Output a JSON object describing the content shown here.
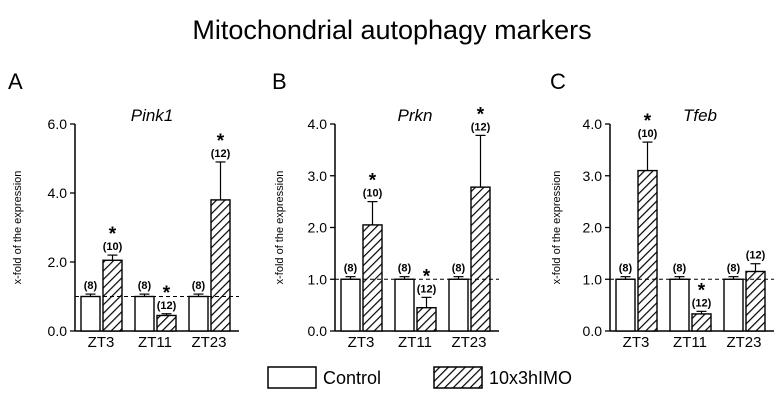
{
  "figure": {
    "title": "Mitochondrial autophagy markers",
    "legend": [
      "Control",
      "10x3hIMO"
    ]
  },
  "colors": {
    "control_fill": "#ffffff",
    "treated_hatch": "#000000",
    "reference_line": "#000000"
  },
  "chart_data": [
    {
      "type": "bar",
      "panel": "A",
      "title": "Pink1",
      "ylabel": "x-fold of the expression",
      "xlabel": "",
      "ylim": [
        0,
        6
      ],
      "yticks": [
        0,
        2,
        4,
        6
      ],
      "ytick_labels": [
        "0.0",
        "2.0",
        "4.0",
        "6.0"
      ],
      "reference_line": 1.0,
      "categories": [
        "ZT3",
        "ZT11",
        "ZT23"
      ],
      "series": [
        {
          "name": "Control",
          "values": [
            1.0,
            1.0,
            1.0
          ],
          "errors": [
            0.07,
            0.07,
            0.07
          ],
          "n": [
            "(8)",
            "(8)",
            "(8)"
          ]
        },
        {
          "name": "10x3hIMO",
          "values": [
            2.05,
            0.45,
            3.8
          ],
          "errors": [
            0.15,
            0.05,
            1.1
          ],
          "n": [
            "(10)",
            "(12)",
            "(12)"
          ],
          "significant": [
            true,
            true,
            true
          ]
        }
      ]
    },
    {
      "type": "bar",
      "panel": "B",
      "title": "Prkn",
      "ylabel": "x-fold of the expression",
      "xlabel": "",
      "ylim": [
        0,
        4
      ],
      "yticks": [
        0,
        1,
        2,
        3,
        4
      ],
      "ytick_labels": [
        "0.0",
        "1.0",
        "2.0",
        "3.0",
        "4.0"
      ],
      "reference_line": 1.0,
      "categories": [
        "ZT3",
        "ZT11",
        "ZT23"
      ],
      "series": [
        {
          "name": "Control",
          "values": [
            1.0,
            1.0,
            1.0
          ],
          "errors": [
            0.05,
            0.05,
            0.05
          ],
          "n": [
            "(8)",
            "(8)",
            "(8)"
          ]
        },
        {
          "name": "10x3hIMO",
          "values": [
            2.05,
            0.45,
            2.78
          ],
          "errors": [
            0.45,
            0.2,
            1.0
          ],
          "n": [
            "(10)",
            "(12)",
            "(12)"
          ],
          "significant": [
            true,
            true,
            true
          ]
        }
      ]
    },
    {
      "type": "bar",
      "panel": "C",
      "title": "Tfeb",
      "ylabel": "x-fold of the expression",
      "xlabel": "",
      "ylim": [
        0,
        4
      ],
      "yticks": [
        0,
        1,
        2,
        3,
        4
      ],
      "ytick_labels": [
        "0.0",
        "1.0",
        "2.0",
        "3.0",
        "4.0"
      ],
      "reference_line": 1.0,
      "categories": [
        "ZT3",
        "ZT11",
        "ZT23"
      ],
      "series": [
        {
          "name": "Control",
          "values": [
            1.0,
            1.0,
            1.0
          ],
          "errors": [
            0.05,
            0.05,
            0.05
          ],
          "n": [
            "(8)",
            "(8)",
            "(8)"
          ]
        },
        {
          "name": "10x3hIMO",
          "values": [
            3.1,
            0.33,
            1.15
          ],
          "errors": [
            0.55,
            0.05,
            0.15
          ],
          "n": [
            "(10)",
            "(12)",
            "(12)"
          ],
          "significant": [
            true,
            true,
            false
          ]
        }
      ]
    }
  ]
}
